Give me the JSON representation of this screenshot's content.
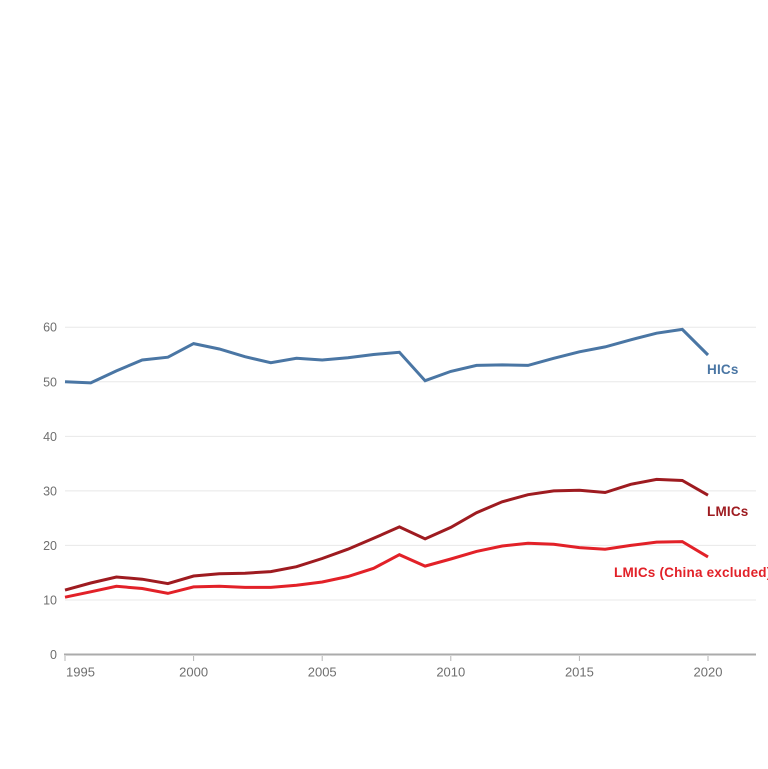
{
  "chart_data": {
    "type": "line",
    "x": [
      1995,
      1996,
      1997,
      1998,
      1999,
      2000,
      2001,
      2002,
      2003,
      2004,
      2005,
      2006,
      2007,
      2008,
      2009,
      2010,
      2011,
      2012,
      2013,
      2014,
      2015,
      2016,
      2017,
      2018,
      2019,
      2020
    ],
    "series": [
      {
        "name": "HICs",
        "color": "#4a76a4",
        "values": [
          50.0,
          49.8,
          52.0,
          54.0,
          54.5,
          57.0,
          56.0,
          54.6,
          53.5,
          54.3,
          54.0,
          54.4,
          55.0,
          55.4,
          50.2,
          51.9,
          53.0,
          53.1,
          53.0,
          54.3,
          55.5,
          56.4,
          57.7,
          58.9,
          59.6,
          54.9
        ]
      },
      {
        "name": "LMICs",
        "color": "#9e1b20",
        "values": [
          11.8,
          13.1,
          14.2,
          13.8,
          13.0,
          14.4,
          14.8,
          14.9,
          15.2,
          16.1,
          17.6,
          19.3,
          21.3,
          23.4,
          21.2,
          23.3,
          26.0,
          28.0,
          29.3,
          30.0,
          30.1,
          29.7,
          31.2,
          32.1,
          31.9,
          29.2
        ]
      },
      {
        "name": "LMICs (China excluded)",
        "color": "#e22128",
        "values": [
          10.5,
          11.5,
          12.5,
          12.1,
          11.2,
          12.4,
          12.5,
          12.3,
          12.3,
          12.7,
          13.3,
          14.3,
          15.8,
          18.3,
          16.2,
          17.5,
          18.9,
          19.9,
          20.4,
          20.2,
          19.6,
          19.3,
          20.0,
          20.6,
          20.7,
          17.9
        ]
      }
    ],
    "xticks": [
      1995,
      2000,
      2005,
      2010,
      2015,
      2020
    ],
    "yticks": [
      0,
      10,
      20,
      30,
      40,
      50,
      60
    ],
    "xlim": [
      1995,
      2020
    ],
    "ylim": [
      0,
      60
    ],
    "title": "",
    "xlabel": "",
    "ylabel": "",
    "grid": "horizontal",
    "legend_position": "line-end-labels",
    "colors": {
      "gridline": "#e8e8e8",
      "axis_line": "#ababab",
      "tick_mark": "#b5b5b5",
      "tick_label": "#6f6f6f",
      "background": "#ffffff"
    }
  }
}
